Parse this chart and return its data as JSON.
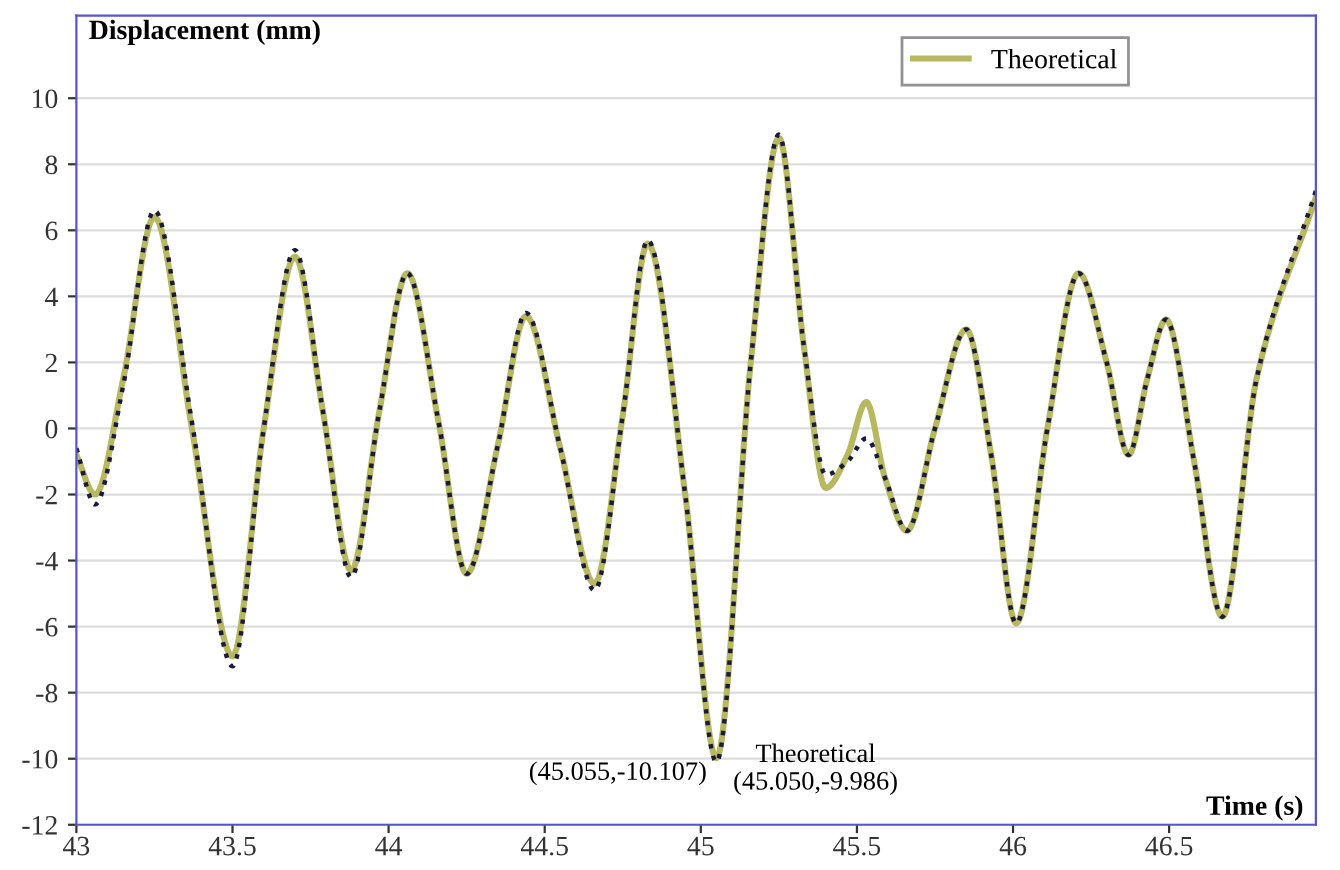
{
  "chart_data": {
    "type": "line",
    "xlabel": "Time (s)",
    "ylabel": "Displacement (mm)",
    "x": [
      43.0,
      43.06,
      43.15,
      43.25,
      43.37,
      43.5,
      43.6,
      43.7,
      43.79,
      43.88,
      43.97,
      44.06,
      44.16,
      44.25,
      44.35,
      44.44,
      44.55,
      44.66,
      44.75,
      44.83,
      44.95,
      45.05,
      45.16,
      45.25,
      45.33,
      45.4,
      45.47,
      45.53,
      45.59,
      45.66,
      45.75,
      45.85,
      45.93,
      46.01,
      46.11,
      46.21,
      46.3,
      46.37,
      46.43,
      46.49,
      46.58,
      46.67,
      46.78,
      46.97
    ],
    "series": [
      {
        "name": "Theoretical",
        "color": "#b8b860",
        "line_style": "solid",
        "values": [
          -0.8,
          -2.0,
          1.5,
          6.4,
          0.0,
          -6.9,
          0.0,
          5.2,
          0.5,
          -4.3,
          0.5,
          4.7,
          0.2,
          -4.4,
          -0.5,
          3.4,
          -0.6,
          -4.7,
          0.4,
          5.6,
          -2.0,
          -9.986,
          2.0,
          8.8,
          2.5,
          -1.8,
          -0.8,
          0.8,
          -1.5,
          -3.1,
          0.0,
          3.0,
          -0.8,
          -5.9,
          0.0,
          4.7,
          2.0,
          -0.8,
          1.5,
          3.3,
          -1.0,
          -5.7,
          1.5,
          7.0
        ]
      },
      {
        "color": "#1a1a3a",
        "line_style": "dotted",
        "values": [
          -0.6,
          -2.3,
          1.3,
          6.6,
          0.2,
          -7.2,
          0.0,
          5.4,
          0.5,
          -4.5,
          0.5,
          4.7,
          0.2,
          -4.4,
          -0.5,
          3.5,
          -0.6,
          -4.9,
          0.4,
          5.7,
          -2.0,
          -10.1,
          2.0,
          8.9,
          2.5,
          -1.4,
          -1.0,
          -0.3,
          -1.5,
          -3.1,
          0.0,
          3.0,
          -0.8,
          -5.9,
          0.0,
          4.7,
          2.0,
          -0.8,
          1.5,
          3.3,
          -1.0,
          -5.7,
          1.5,
          7.2
        ]
      }
    ],
    "xlim": [
      43,
      46.97
    ],
    "ylim": [
      -12,
      12.5
    ],
    "xticks": [
      43,
      43.5,
      44,
      44.5,
      45,
      45.5,
      46,
      46.5
    ],
    "yticks": [
      -12,
      -10,
      -8,
      -6,
      -4,
      -2,
      0,
      2,
      4,
      6,
      8,
      10
    ],
    "grid": "y",
    "legend": "top right",
    "annotations": [
      {
        "text": "(45.055,-10.107)",
        "x": 45.055,
        "y": -10.107
      },
      {
        "text": "Theoretical\n(45.050,-9.986)",
        "x": 45.05,
        "y": -9.986
      }
    ]
  }
}
